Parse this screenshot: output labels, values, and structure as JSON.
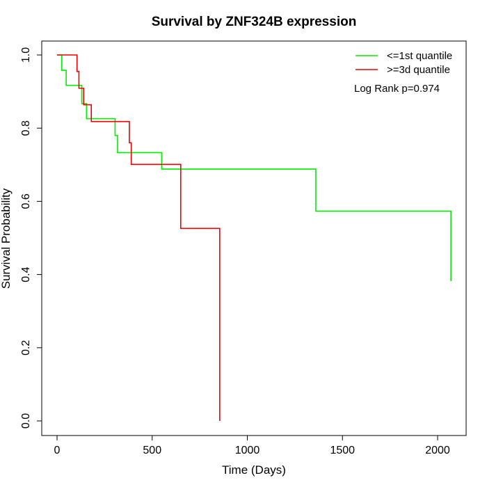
{
  "chart_data": {
    "type": "line",
    "title": "Survival by ZNF324B expression",
    "xlabel": "Time (Days)",
    "ylabel": "Survival Probability",
    "xlim": [
      0,
      2070
    ],
    "ylim": [
      0,
      1
    ],
    "xticks": [
      0,
      500,
      1000,
      1500,
      2000
    ],
    "yticks": [
      0.0,
      0.2,
      0.4,
      0.6,
      0.8,
      1.0
    ],
    "ytick_labels": [
      "0.0",
      "0.2",
      "0.4",
      "0.6",
      "0.8",
      "1.0"
    ],
    "grid": false,
    "legend_position": "top-right",
    "annotation": "Log Rank p=0.974",
    "series": [
      {
        "name": "<=1st quantile",
        "color": "#00ee00",
        "step": true,
        "x": [
          0,
          25,
          48,
          110,
          130,
          155,
          305,
          318,
          550,
          1360,
          2070
        ],
        "y": [
          1.0,
          0.958,
          0.917,
          0.917,
          0.867,
          0.826,
          0.78,
          0.733,
          0.688,
          0.573,
          0.382
        ]
      },
      {
        "name": ">=3d quantile",
        "color": "#ee0000",
        "step": true,
        "x": [
          0,
          105,
          115,
          140,
          180,
          380,
          390,
          650,
          855
        ],
        "y": [
          1.0,
          0.955,
          0.909,
          0.864,
          0.818,
          0.76,
          0.701,
          0.526,
          0.0
        ]
      }
    ]
  }
}
